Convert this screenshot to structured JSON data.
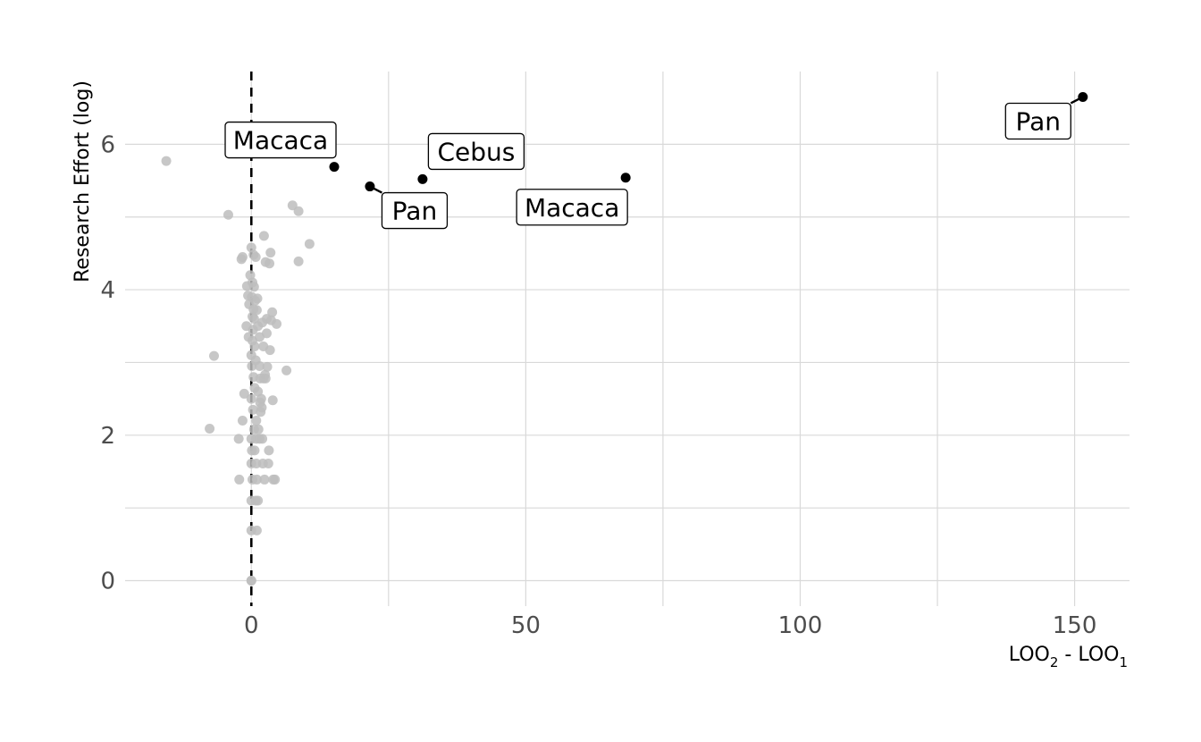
{
  "chart_data": {
    "type": "scatter",
    "title": "",
    "xlabel_parts": [
      "LOO",
      "2",
      " - LOO",
      "1"
    ],
    "ylabel": "Research Effort (log)",
    "xlim": [
      -23,
      160
    ],
    "ylim": [
      -0.35,
      7.0
    ],
    "x_ticks": [
      0,
      50,
      100,
      150
    ],
    "x_tick_labels": [
      "0",
      "50",
      "100",
      "150"
    ],
    "x_minor_ticks": [
      25,
      75,
      125
    ],
    "y_ticks": [
      0,
      2,
      4,
      6
    ],
    "y_tick_labels": [
      "0",
      "2",
      "4",
      "6"
    ],
    "y_minor_ticks": [
      1,
      3,
      5
    ],
    "reference_line": {
      "axis": "x",
      "value": 0,
      "style": "dashed"
    },
    "grid": true,
    "colors": {
      "background_points": "#bdbdbd",
      "highlight_points": "#000000",
      "grid": "#d9d9d9"
    },
    "background_points": [
      [
        -15.5,
        5.77
      ],
      [
        -4.2,
        5.03
      ],
      [
        7.5,
        5.16
      ],
      [
        8.6,
        5.08
      ],
      [
        10.6,
        4.63
      ],
      [
        -6.8,
        3.09
      ],
      [
        -7.6,
        2.09
      ],
      [
        -2.3,
        1.95
      ],
      [
        -2.2,
        1.39
      ],
      [
        -1.6,
        2.2
      ],
      [
        -1.3,
        2.57
      ],
      [
        -1.8,
        4.42
      ],
      [
        -1.6,
        4.45
      ],
      [
        -0.8,
        4.05
      ],
      [
        -0.6,
        3.92
      ],
      [
        -0.9,
        3.5
      ],
      [
        -0.5,
        3.35
      ],
      [
        -0.4,
        3.8
      ],
      [
        -0.2,
        4.2
      ],
      [
        0.0,
        4.58
      ],
      [
        0.2,
        4.1
      ],
      [
        0.4,
        3.73
      ],
      [
        0.6,
        3.22
      ],
      [
        0.8,
        4.45
      ],
      [
        0.5,
        4.04
      ],
      [
        0.1,
        3.9
      ],
      [
        0.2,
        3.63
      ],
      [
        0.3,
        3.45
      ],
      [
        0.5,
        3.6
      ],
      [
        0.7,
        3.85
      ],
      [
        0.2,
        3.3
      ],
      [
        0.0,
        3.1
      ],
      [
        0.1,
        2.95
      ],
      [
        0.4,
        2.8
      ],
      [
        0.6,
        2.65
      ],
      [
        0.0,
        2.5
      ],
      [
        0.3,
        2.35
      ],
      [
        0.5,
        2.08
      ],
      [
        0.0,
        1.95
      ],
      [
        0.9,
        1.95
      ],
      [
        0.1,
        1.79
      ],
      [
        0.6,
        1.79
      ],
      [
        0.0,
        1.61
      ],
      [
        0.9,
        1.61
      ],
      [
        0.2,
        1.39
      ],
      [
        1.0,
        1.39
      ],
      [
        0.0,
        1.1
      ],
      [
        0.8,
        1.1
      ],
      [
        1.2,
        1.1
      ],
      [
        0.0,
        0.69
      ],
      [
        1.0,
        0.69
      ],
      [
        0.0,
        0.0
      ],
      [
        0.0,
        0.0
      ],
      [
        1.0,
        3.72
      ],
      [
        1.2,
        3.5
      ],
      [
        1.5,
        2.95
      ],
      [
        1.6,
        2.78
      ],
      [
        1.8,
        2.5
      ],
      [
        1.7,
        2.32
      ],
      [
        1.3,
        2.08
      ],
      [
        1.5,
        1.95
      ],
      [
        2.0,
        1.95
      ],
      [
        1.1,
        3.88
      ],
      [
        1.5,
        3.35
      ],
      [
        2.0,
        3.55
      ],
      [
        2.2,
        3.22
      ],
      [
        2.5,
        2.83
      ],
      [
        2.2,
        2.78
      ],
      [
        1.6,
        2.45
      ],
      [
        2.3,
        4.74
      ],
      [
        2.6,
        4.38
      ],
      [
        2.8,
        3.6
      ],
      [
        2.8,
        3.4
      ],
      [
        2.9,
        2.94
      ],
      [
        2.6,
        2.78
      ],
      [
        2.1,
        1.61
      ],
      [
        2.4,
        1.39
      ],
      [
        3.1,
        1.61
      ],
      [
        3.2,
        1.79
      ],
      [
        3.5,
        4.51
      ],
      [
        3.3,
        4.36
      ],
      [
        3.4,
        3.17
      ],
      [
        3.8,
        3.69
      ],
      [
        3.6,
        3.58
      ],
      [
        3.9,
        2.48
      ],
      [
        4.0,
        1.39
      ],
      [
        4.3,
        1.39
      ],
      [
        4.6,
        3.53
      ],
      [
        6.4,
        2.89
      ],
      [
        8.6,
        4.39
      ],
      [
        0.4,
        4.48
      ],
      [
        0.8,
        3.03
      ],
      [
        1.9,
        2.38
      ],
      [
        1.2,
        2.6
      ],
      [
        0.9,
        2.2
      ]
    ],
    "highlight_points": [
      {
        "x": 15.1,
        "y": 5.69,
        "label": "Macaca"
      },
      {
        "x": 21.6,
        "y": 5.42,
        "label": "Pan"
      },
      {
        "x": 31.2,
        "y": 5.52,
        "label": "Cebus"
      },
      {
        "x": 68.2,
        "y": 5.54,
        "label": "Macaca"
      },
      {
        "x": 151.5,
        "y": 6.65,
        "label": "Pan"
      }
    ]
  }
}
